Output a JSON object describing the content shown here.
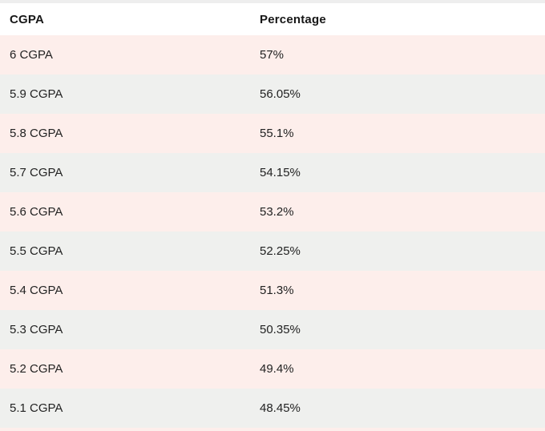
{
  "table": {
    "columns": [
      "CGPA",
      "Percentage"
    ],
    "rows": [
      [
        "6 CGPA",
        "57%"
      ],
      [
        "5.9 CGPA",
        "56.05%"
      ],
      [
        "5.8 CGPA",
        "55.1%"
      ],
      [
        "5.7 CGPA",
        "54.15%"
      ],
      [
        "5.6 CGPA",
        "53.2%"
      ],
      [
        "5.5 CGPA",
        "52.25%"
      ],
      [
        "5.4 CGPA",
        "51.3%"
      ],
      [
        "5.3 CGPA",
        "50.35%"
      ],
      [
        "5.2 CGPA",
        "49.4%"
      ],
      [
        "5.1 CGPA",
        "48.45%"
      ]
    ]
  },
  "chart_data": {
    "type": "table",
    "columns": [
      "CGPA",
      "Percentage"
    ],
    "rows": [
      [
        "6 CGPA",
        "57%"
      ],
      [
        "5.9 CGPA",
        "56.05%"
      ],
      [
        "5.8 CGPA",
        "55.1%"
      ],
      [
        "5.7 CGPA",
        "54.15%"
      ],
      [
        "5.6 CGPA",
        "53.2%"
      ],
      [
        "5.5 CGPA",
        "52.25%"
      ],
      [
        "5.4 CGPA",
        "51.3%"
      ],
      [
        "5.3 CGPA",
        "50.35%"
      ],
      [
        "5.2 CGPA",
        "49.4%"
      ],
      [
        "5.1 CGPA",
        "48.45%"
      ]
    ],
    "cgpa_values": [
      6,
      5.9,
      5.8,
      5.7,
      5.6,
      5.5,
      5.4,
      5.3,
      5.2,
      5.1
    ],
    "percentage_values": [
      57,
      56.05,
      55.1,
      54.15,
      53.2,
      52.25,
      51.3,
      50.35,
      49.4,
      48.45
    ]
  },
  "colors": {
    "row_pink": "#fdeeeb",
    "row_gray": "#eff0ee",
    "top_strip": "#eeeeee",
    "header_bg": "#ffffff",
    "text": "#222222"
  }
}
